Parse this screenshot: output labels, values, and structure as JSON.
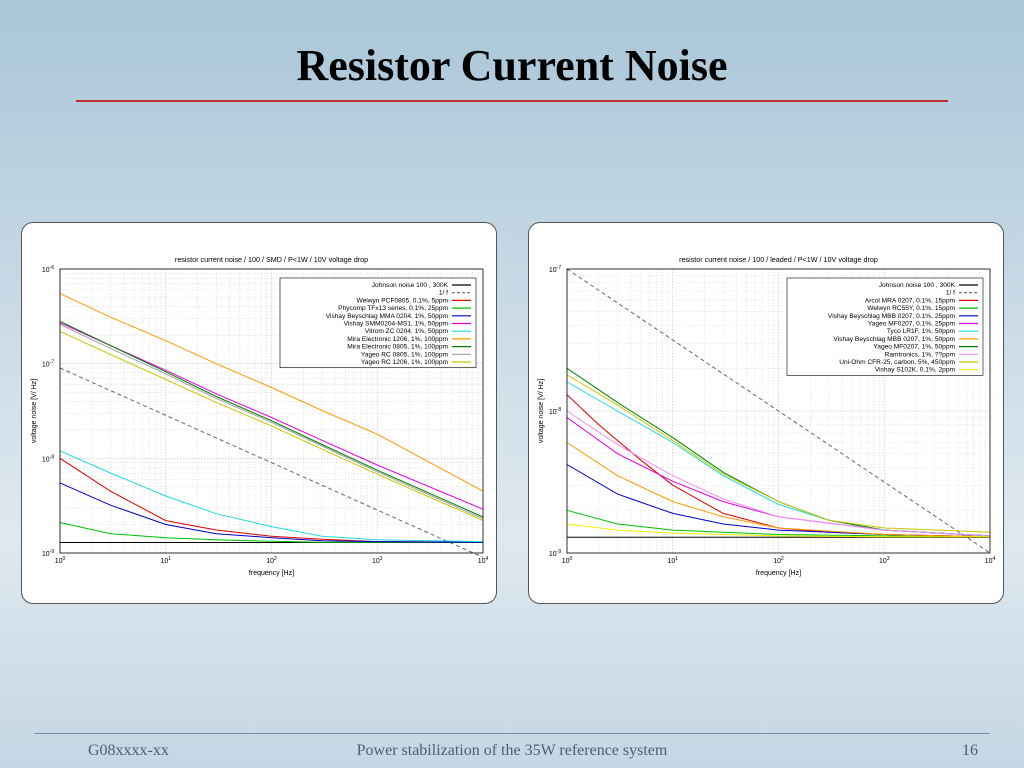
{
  "slide": {
    "title": "Resistor Current Noise",
    "footer_left": "G08xxxx-xx",
    "footer_center": "Power stabilization of the 35W reference system",
    "page_number": "16"
  },
  "chart_data": [
    {
      "type": "line",
      "title": "resistor current noise / 100   / SMD / P<1W / 10V voltage drop",
      "xlabel": "frequency [Hz]",
      "ylabel": "voltage noise [V/   Hz]",
      "x_scale": "log",
      "y_scale": "log",
      "xlim": [
        1,
        10000
      ],
      "ylim": [
        1e-09,
        1e-06
      ],
      "x_tick_exponents": [
        "0",
        "1",
        "2",
        "3",
        "4"
      ],
      "y_tick_exponents": [
        "-9",
        "-8",
        "-7",
        "-6"
      ],
      "grid": true,
      "legend_position": "top-right",
      "series": [
        {
          "name": "Johnson noise 100   , 300K",
          "color": "#000000",
          "dash": "solid",
          "x": [
            1,
            10000
          ],
          "y": [
            1.29e-09,
            1.29e-09
          ]
        },
        {
          "name": "1/  f",
          "color": "#666666",
          "dash": "dashed",
          "x": [
            1,
            10000
          ],
          "y": [
            9e-08,
            9e-10
          ]
        },
        {
          "name": "Welwyn PCF0805, 0.1%, 5ppm",
          "color": "#e00000",
          "x": [
            1,
            3,
            10,
            30,
            100,
            300,
            1000,
            10000
          ],
          "y": [
            1e-08,
            4.5e-09,
            2.2e-09,
            1.75e-09,
            1.5e-09,
            1.4e-09,
            1.32e-09,
            1.3e-09
          ]
        },
        {
          "name": "Phycomp TFx13 series, 0.1%, 25ppm",
          "color": "#00c000",
          "x": [
            1,
            3,
            10,
            30,
            100,
            300,
            1000,
            10000
          ],
          "y": [
            2.1e-09,
            1.6e-09,
            1.45e-09,
            1.38e-09,
            1.33e-09,
            1.3e-09,
            1.3e-09,
            1.3e-09
          ]
        },
        {
          "name": "Vishay Beyschlag MMA 0204, 1%, 50ppm",
          "color": "#0000c8",
          "x": [
            1,
            3,
            10,
            30,
            100,
            300,
            1000,
            10000
          ],
          "y": [
            5.5e-09,
            3.2e-09,
            2e-09,
            1.6e-09,
            1.45e-09,
            1.35e-09,
            1.32e-09,
            1.3e-09
          ]
        },
        {
          "name": "Vishay SMM0204-MS1, 1%, 50ppm",
          "color": "#e000e0",
          "x": [
            1,
            3,
            10,
            30,
            100,
            300,
            1000,
            10000
          ],
          "y": [
            2.7e-07,
            1.55e-07,
            8.5e-08,
            4.8e-08,
            2.7e-08,
            1.55e-08,
            8.5e-09,
            2.9e-09
          ]
        },
        {
          "name": "Vitrom ZC 0204, 1%, 50ppm",
          "color": "#20d8e0",
          "x": [
            1,
            3,
            10,
            30,
            100,
            300,
            1000,
            10000
          ],
          "y": [
            1.2e-08,
            7e-09,
            4e-09,
            2.6e-09,
            1.9e-09,
            1.5e-09,
            1.38e-09,
            1.32e-09
          ]
        },
        {
          "name": "Mira Electronic 1206, 1%, 100ppm",
          "color": "#ff9900",
          "x": [
            1,
            3,
            10,
            30,
            100,
            300,
            1000,
            10000
          ],
          "y": [
            5.5e-07,
            3.1e-07,
            1.75e-07,
            1e-07,
            5.6e-08,
            3.2e-08,
            1.8e-08,
            4.5e-09
          ]
        },
        {
          "name": "Mira Electronic 0805, 1%, 100ppm",
          "color": "#008000",
          "x": [
            1,
            3,
            10,
            30,
            100,
            300,
            1000,
            10000
          ],
          "y": [
            2.8e-07,
            1.55e-07,
            8.2e-08,
            4.5e-08,
            2.5e-08,
            1.4e-08,
            7.5e-09,
            2.4e-09
          ]
        },
        {
          "name": "Yageo RC 0805, 1%, 100ppm",
          "color": "#a0a0a0",
          "x": [
            1,
            3,
            10,
            30,
            100,
            300,
            1000,
            10000
          ],
          "y": [
            2.6e-07,
            1.45e-07,
            7.8e-08,
            4.3e-08,
            2.4e-08,
            1.35e-08,
            7.2e-09,
            2.3e-09
          ]
        },
        {
          "name": "Yageo RC 1206, 1%, 100ppm",
          "color": "#c8c800",
          "x": [
            1,
            3,
            10,
            30,
            100,
            300,
            1000,
            10000
          ],
          "y": [
            2.2e-07,
            1.25e-07,
            6.8e-08,
            3.9e-08,
            2.2e-08,
            1.25e-08,
            6.8e-09,
            2.2e-09
          ]
        }
      ]
    },
    {
      "type": "line",
      "title": "resistor current noise / 100 / leaded / P<1W / 10V voltage drop",
      "xlabel": "frequency [Hz]",
      "ylabel": "voltage noise [V/   Hz]",
      "x_scale": "log",
      "y_scale": "log",
      "xlim": [
        1,
        10000
      ],
      "ylim": [
        1e-09,
        1e-07
      ],
      "x_tick_exponents": [
        "0",
        "1",
        "2",
        "3",
        "4"
      ],
      "y_tick_exponents": [
        "-9",
        "-8",
        "-7"
      ],
      "grid": true,
      "legend_position": "top-right",
      "series": [
        {
          "name": "Johnson noise 100 , 300K",
          "color": "#000000",
          "dash": "solid",
          "x": [
            1,
            10000
          ],
          "y": [
            1.29e-09,
            1.29e-09
          ]
        },
        {
          "name": "1/  f",
          "color": "#666666",
          "dash": "dashed",
          "x": [
            1,
            10000
          ],
          "y": [
            1e-07,
            1e-09
          ]
        },
        {
          "name": "Arcol MRA 0207, 0.1%, 15ppm",
          "color": "#e00000",
          "x": [
            1,
            2,
            5,
            10,
            30,
            100,
            300,
            1000,
            10000
          ],
          "y": [
            1.3e-08,
            8e-09,
            4.5e-09,
            3e-09,
            1.9e-09,
            1.5e-09,
            1.4e-09,
            1.35e-09,
            1.3e-09
          ]
        },
        {
          "name": "Welwyn RC55Y, 0.1%, 15ppm",
          "color": "#00c000",
          "x": [
            1,
            3,
            10,
            30,
            100,
            1000,
            10000
          ],
          "y": [
            2e-09,
            1.6e-09,
            1.45e-09,
            1.4e-09,
            1.35e-09,
            1.32e-09,
            1.3e-09
          ]
        },
        {
          "name": "Vishay Beyschlag MBB 0207, 0.1%, 25ppm",
          "color": "#0000c8",
          "x": [
            1,
            3,
            10,
            30,
            100,
            1000,
            10000
          ],
          "y": [
            4.2e-09,
            2.6e-09,
            1.9e-09,
            1.6e-09,
            1.45e-09,
            1.35e-09,
            1.3e-09
          ]
        },
        {
          "name": "Yageo MF0207, 0.1%, 25ppm",
          "color": "#e000e0",
          "x": [
            1,
            3,
            10,
            30,
            100,
            1000,
            10000
          ],
          "y": [
            9e-09,
            5e-09,
            3.2e-09,
            2.3e-09,
            1.8e-09,
            1.45e-09,
            1.32e-09
          ]
        },
        {
          "name": "Tyco LR1F, 1%, 50ppm",
          "color": "#20d8e0",
          "x": [
            1,
            3,
            10,
            30,
            100,
            300,
            1000,
            10000
          ],
          "y": [
            1.6e-08,
            1e-08,
            6e-09,
            3.5e-09,
            2.2e-09,
            1.7e-09,
            1.45e-09,
            1.32e-09
          ]
        },
        {
          "name": "Vishay Beyschlag MBB 0207, 1%, 50ppm",
          "color": "#ff9900",
          "x": [
            1,
            3,
            10,
            30,
            100,
            1000,
            10000
          ],
          "y": [
            6e-09,
            3.5e-09,
            2.3e-09,
            1.8e-09,
            1.5e-09,
            1.35e-09,
            1.3e-09
          ]
        },
        {
          "name": "Yageo MF0207, 1%, 50ppm",
          "color": "#008000",
          "x": [
            1,
            3,
            10,
            30,
            100,
            300,
            1000,
            10000
          ],
          "y": [
            2e-08,
            1.15e-08,
            6.5e-09,
            3.7e-09,
            2.3e-09,
            1.7e-09,
            1.45e-09,
            1.32e-09
          ]
        },
        {
          "name": "Ramtronics, 1%, ??ppm",
          "color": "#f090f0",
          "x": [
            1,
            3,
            10,
            30,
            100,
            1000,
            10000
          ],
          "y": [
            1e-08,
            5.8e-09,
            3.5e-09,
            2.4e-09,
            1.8e-09,
            1.45e-09,
            1.32e-09
          ]
        },
        {
          "name": "Uni-Ohm CFR-25, carbon, 5%, 450ppm",
          "color": "#c8c800",
          "x": [
            1,
            3,
            10,
            30,
            100,
            300,
            1000,
            10000
          ],
          "y": [
            1.8e-08,
            1.1e-08,
            6.2e-09,
            3.6e-09,
            2.3e-09,
            1.7e-09,
            1.5e-09,
            1.4e-09
          ]
        },
        {
          "name": "Vishay S102K, 0.1%, 2ppm",
          "color": "#f0f000",
          "x": [
            1,
            3,
            10,
            30,
            100,
            1000,
            10000
          ],
          "y": [
            1.6e-09,
            1.45e-09,
            1.38e-09,
            1.35e-09,
            1.32e-09,
            1.3e-09,
            1.3e-09
          ]
        }
      ]
    }
  ]
}
